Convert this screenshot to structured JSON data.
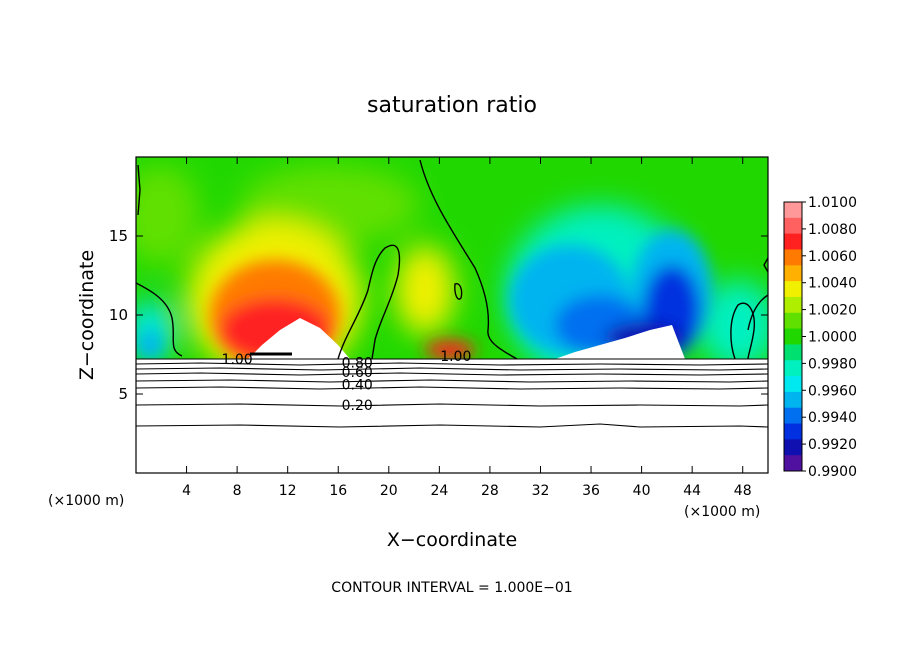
{
  "chart_data": {
    "type": "heatmap",
    "title": "saturation ratio",
    "xlabel": "X−coordinate",
    "ylabel": "Z−coordinate",
    "x_unit_left": "(×1000 m)",
    "x_unit_right": "(×1000 m)",
    "xlim": [
      0,
      50
    ],
    "ylim": [
      0,
      20
    ],
    "x_ticks": [
      4,
      8,
      12,
      16,
      20,
      24,
      28,
      32,
      36,
      40,
      44,
      48
    ],
    "y_ticks": [
      5,
      10,
      15
    ],
    "colorbar": {
      "range": [
        0.99,
        1.01
      ],
      "labels": [
        "1.0100",
        "1.0080",
        "1.0060",
        "1.0040",
        "1.0020",
        "1.0000",
        "0.9980",
        "0.9960",
        "0.9940",
        "0.9920",
        "0.9900"
      ],
      "colors": [
        "#ff9898",
        "#ff6060",
        "#ff2020",
        "#ff7a00",
        "#ffb000",
        "#f0f000",
        "#b0ee00",
        "#60e000",
        "#20d800",
        "#00e070",
        "#00f0c0",
        "#00e8f0",
        "#00b4f0",
        "#0070f0",
        "#0030e0",
        "#1010b0",
        "#5010a0"
      ]
    },
    "contour_labels": [
      {
        "text": "1.00",
        "x": 8.0,
        "y": 7.2
      },
      {
        "text": "1.00",
        "x": 25.3,
        "y": 7.4
      },
      {
        "text": "0.80",
        "x": 17.5,
        "y": 7.0
      },
      {
        "text": "0.60",
        "x": 17.5,
        "y": 6.4
      },
      {
        "text": "0.40",
        "x": 17.5,
        "y": 5.6
      },
      {
        "text": "0.20",
        "x": 17.5,
        "y": 4.3
      }
    ],
    "footer": "CONTOUR INTERVAL = 1.000E−01"
  }
}
